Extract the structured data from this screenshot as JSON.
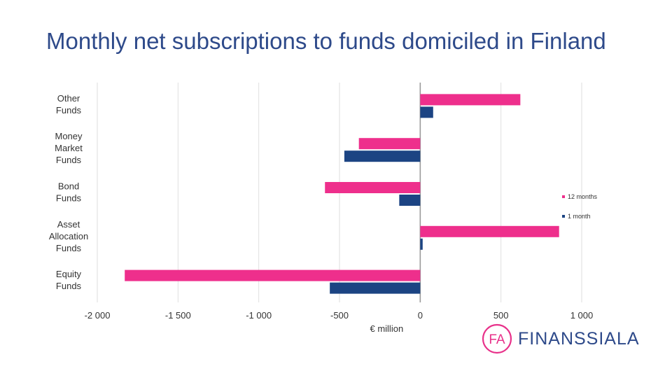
{
  "title": "Monthly net subscriptions to funds domiciled in Finland",
  "brand": {
    "monogram": "FA",
    "name": "FINANSSIALA",
    "ring_color": "#e8318a",
    "text_color": "#2e4a8a"
  },
  "chart_data": {
    "type": "bar",
    "orientation": "horizontal",
    "categories": [
      [
        "Other",
        "Funds"
      ],
      [
        "Money",
        "Market",
        "Funds"
      ],
      [
        "Bond",
        "Funds"
      ],
      [
        "Asset",
        "Allocation",
        "Funds"
      ],
      [
        "Equity",
        "Funds"
      ]
    ],
    "series": [
      {
        "name": "12 months",
        "color": "#ee2f8c",
        "values": [
          620,
          -380,
          -590,
          860,
          -1830
        ]
      },
      {
        "name": "1 month",
        "color": "#1c4483",
        "values": [
          80,
          -470,
          -130,
          15,
          -560
        ]
      }
    ],
    "xlim": [
      -2000,
      1000
    ],
    "xticks": [
      -2000,
      -1500,
      -1000,
      -500,
      0,
      500,
      1000
    ],
    "xtick_labels": [
      "-2 000",
      "-1 500",
      "-1 000",
      "-500",
      "0",
      "500",
      "1 000"
    ],
    "xlabel": "€ million",
    "grid": "vertical",
    "legend_position": "right"
  }
}
